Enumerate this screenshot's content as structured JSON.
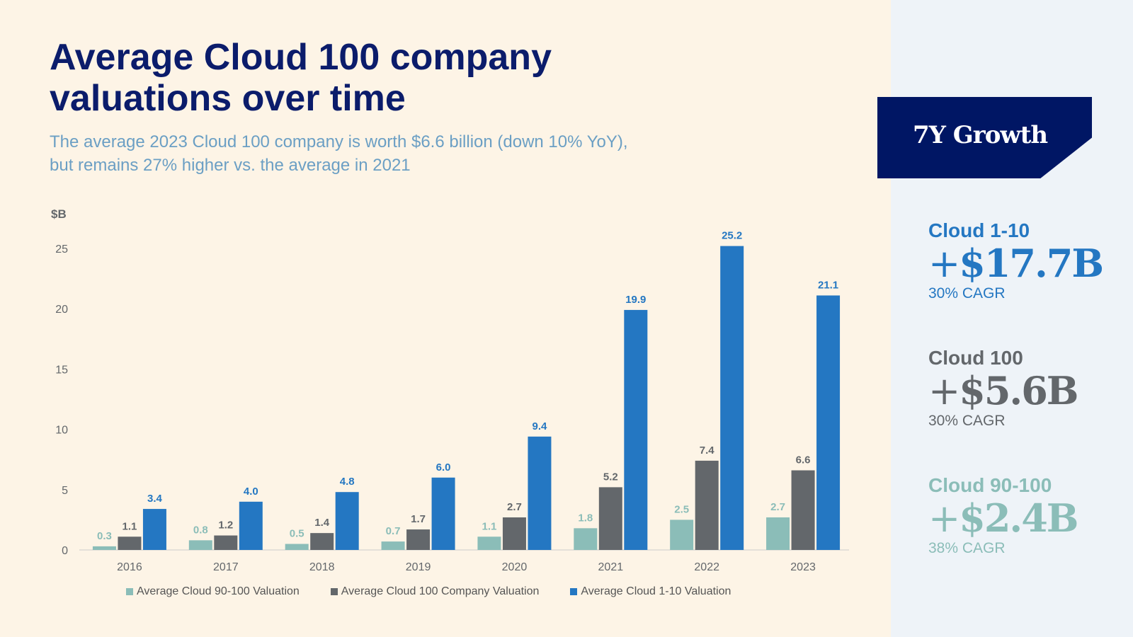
{
  "header": {
    "title": "Average Cloud 100 company valuations over time",
    "subtitle_line1": "The average 2023 Cloud 100 company is worth $6.6 billion (down 10% YoY),",
    "subtitle_line2": "but remains 27% higher vs. the average in 2021"
  },
  "panel": {
    "badge": "7Y Growth",
    "stats": [
      {
        "label": "Cloud 1-10",
        "plus": "+",
        "value": "$17.7B",
        "cagr": "30% CAGR",
        "color": "#2477c2"
      },
      {
        "label": "Cloud 100",
        "plus": "+",
        "value": "$5.6B",
        "cagr": "30% CAGR",
        "color": "#63676b"
      },
      {
        "label": "Cloud 90-100",
        "plus": "+",
        "value": "$2.4B",
        "cagr": "38% CAGR",
        "color": "#8bbdb8"
      }
    ]
  },
  "chart_data": {
    "type": "bar",
    "ylabel": "$B",
    "ylim": [
      0,
      25
    ],
    "yticks": [
      0,
      5,
      10,
      15,
      20,
      25
    ],
    "grid": false,
    "legend": "bottom",
    "categories": [
      "2016",
      "2017",
      "2018",
      "2019",
      "2020",
      "2021",
      "2022",
      "2023"
    ],
    "series": [
      {
        "name": "Average Cloud 90-100 Valuation",
        "color": "#8bbdb8",
        "values": [
          0.3,
          0.8,
          0.5,
          0.7,
          1.1,
          1.8,
          2.5,
          2.7
        ]
      },
      {
        "name": "Average Cloud 100 Company Valuation",
        "color": "#63676b",
        "values": [
          1.1,
          1.2,
          1.4,
          1.7,
          2.7,
          5.2,
          7.4,
          6.6
        ]
      },
      {
        "name": "Average Cloud 1-10 Valuation",
        "color": "#2477c2",
        "values": [
          3.4,
          4.0,
          4.8,
          6.0,
          9.4,
          19.9,
          25.2,
          21.1
        ]
      }
    ]
  }
}
